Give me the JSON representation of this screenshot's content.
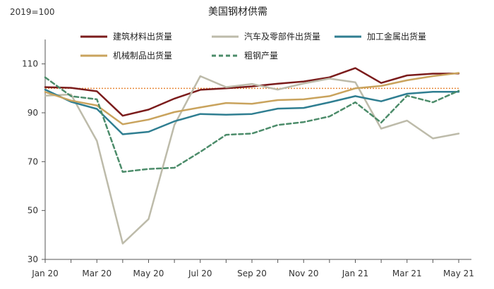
{
  "chart_data": {
    "type": "line",
    "title": "美国钢材供需",
    "unit_label": "2019=100",
    "ylim": [
      30,
      120
    ],
    "yticks": [
      30,
      50,
      70,
      90,
      110
    ],
    "grid": false,
    "legend_position": "top",
    "x": [
      "Jan 20",
      "Feb 20",
      "Mar 20",
      "Apr 20",
      "May 20",
      "Jun 20",
      "Jul 20",
      "Aug 20",
      "Sep 20",
      "Oct 20",
      "Nov 20",
      "Dec 20",
      "Jan 21",
      "Feb 21",
      "Mar 21",
      "Apr 21",
      "May 21"
    ],
    "x_tick_labels": [
      "Jan 20",
      "Mar 20",
      "May 20",
      "Jul 20",
      "Sep 20",
      "Nov 20",
      "Jan 21",
      "Mar 21",
      "May 21"
    ],
    "reference_line": {
      "value": 100,
      "color": "#E8893A"
    },
    "series": [
      {
        "name": "建筑材料出货量",
        "color": "#7B1C1C",
        "style": "solid",
        "values": [
          100.5,
          100.2,
          98.8,
          88.8,
          91.3,
          95.8,
          99.4,
          100.0,
          100.8,
          101.9,
          102.8,
          104.5,
          108.3,
          102.2,
          105.3,
          106.0,
          106.1
        ]
      },
      {
        "name": "汽车及零部件出货量",
        "color": "#BDBBAA",
        "style": "solid",
        "values": [
          97.0,
          97.5,
          78.5,
          36.5,
          46.5,
          85.0,
          105.0,
          100.5,
          101.8,
          99.5,
          102.0,
          104.0,
          102.5,
          83.5,
          86.8,
          79.5,
          81.5
        ]
      },
      {
        "name": "加工金属出货量",
        "color": "#2F7E91",
        "style": "solid",
        "values": [
          99.5,
          94.5,
          91.6,
          81.2,
          82.2,
          86.5,
          89.5,
          89.2,
          89.5,
          91.7,
          92.0,
          94.3,
          96.8,
          94.7,
          97.8,
          98.6,
          98.6
        ]
      },
      {
        "name": "机械制品出货量",
        "color": "#C9A35D",
        "style": "solid",
        "values": [
          98.5,
          95.0,
          93.0,
          85.3,
          87.2,
          90.3,
          92.2,
          94.0,
          93.7,
          95.2,
          95.5,
          96.8,
          100.0,
          101.0,
          103.3,
          105.0,
          106.3
        ]
      },
      {
        "name": "粗钢产量",
        "color": "#4C8C6A",
        "style": "dashed",
        "values": [
          104.5,
          96.8,
          95.5,
          65.8,
          67.0,
          67.5,
          74.0,
          81.0,
          81.5,
          85.0,
          86.2,
          88.5,
          94.3,
          86.0,
          97.0,
          94.3,
          99.0
        ]
      }
    ]
  }
}
